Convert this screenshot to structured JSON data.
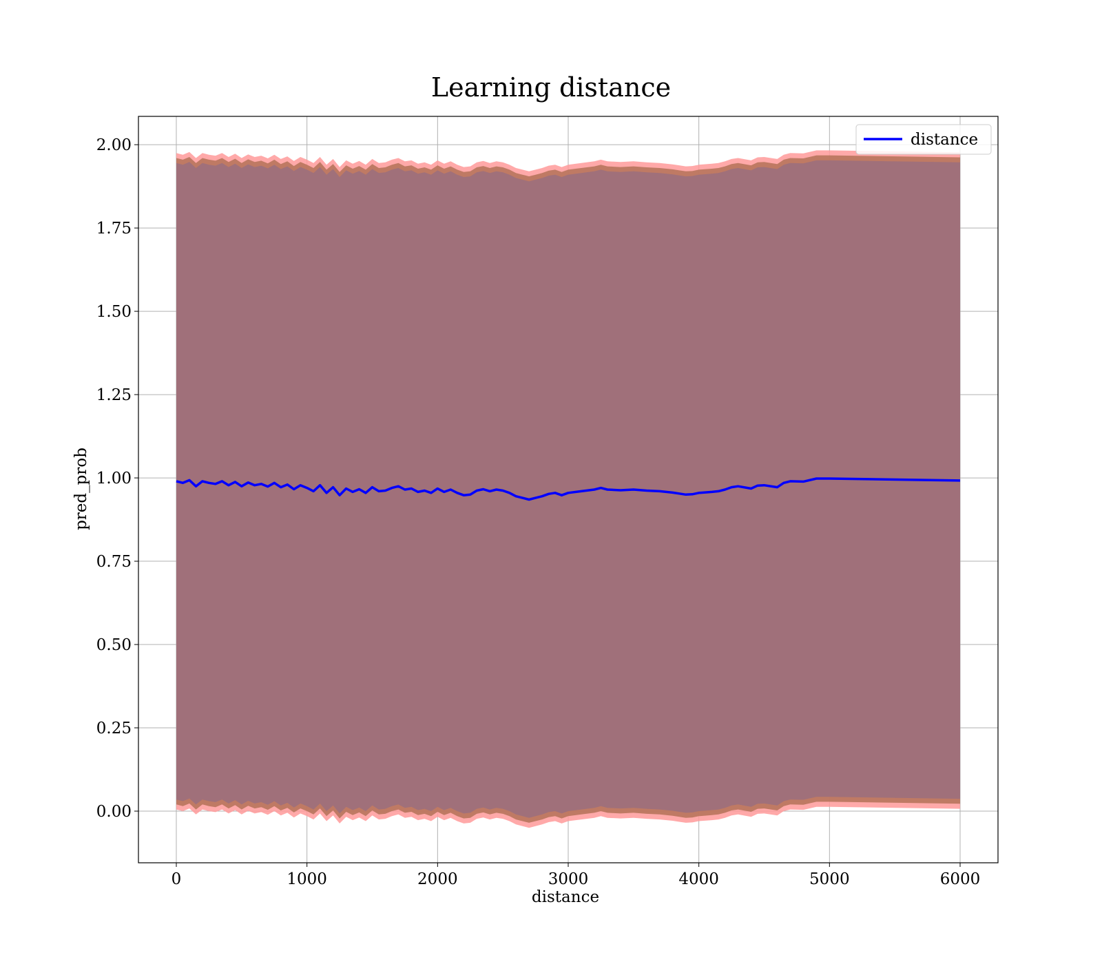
{
  "chart_data": {
    "type": "line",
    "title": "Learning distance",
    "xlabel": "distance",
    "ylabel": "pred_prob",
    "xlim": [
      -290,
      6290
    ],
    "ylim": [
      -0.155,
      2.085
    ],
    "xticks": [
      0,
      1000,
      2000,
      3000,
      4000,
      5000,
      6000
    ],
    "xtick_labels": [
      "0",
      "1000",
      "2000",
      "3000",
      "4000",
      "5000",
      "6000"
    ],
    "yticks": [
      0.0,
      0.25,
      0.5,
      0.75,
      1.0,
      1.25,
      1.5,
      1.75,
      2.0
    ],
    "ytick_labels": [
      "0.00",
      "0.25",
      "0.50",
      "0.75",
      "1.00",
      "1.25",
      "1.50",
      "1.75",
      "2.00"
    ],
    "grid": true,
    "legend_position": "top-right",
    "colors": {
      "line": "#0000ff",
      "outer_band": "#ff9a9a",
      "inner_band": "#b8745c",
      "core_band": "#a0707a",
      "axes": "#000000",
      "grid": "#b0b0b0"
    },
    "series": [
      {
        "name": "distance",
        "x": [
          0,
          50,
          100,
          150,
          200,
          250,
          300,
          350,
          400,
          450,
          500,
          550,
          600,
          650,
          700,
          750,
          800,
          850,
          900,
          950,
          1000,
          1050,
          1100,
          1150,
          1200,
          1250,
          1300,
          1350,
          1400,
          1450,
          1500,
          1550,
          1600,
          1650,
          1700,
          1750,
          1800,
          1850,
          1900,
          1950,
          2000,
          2050,
          2100,
          2150,
          2200,
          2250,
          2300,
          2350,
          2400,
          2450,
          2500,
          2550,
          2600,
          2650,
          2700,
          2750,
          2800,
          2850,
          2900,
          2950,
          3000,
          3100,
          3200,
          3250,
          3300,
          3400,
          3500,
          3600,
          3700,
          3800,
          3850,
          3900,
          3950,
          4000,
          4100,
          4150,
          4200,
          4250,
          4300,
          4400,
          4450,
          4500,
          4600,
          4650,
          4700,
          4800,
          4900,
          5000,
          6000
        ],
        "y": [
          0.99,
          0.985,
          0.993,
          0.975,
          0.99,
          0.985,
          0.982,
          0.99,
          0.978,
          0.988,
          0.975,
          0.986,
          0.978,
          0.982,
          0.974,
          0.985,
          0.972,
          0.98,
          0.966,
          0.978,
          0.97,
          0.96,
          0.978,
          0.955,
          0.972,
          0.948,
          0.968,
          0.958,
          0.966,
          0.955,
          0.972,
          0.96,
          0.962,
          0.97,
          0.975,
          0.965,
          0.968,
          0.958,
          0.962,
          0.955,
          0.968,
          0.958,
          0.965,
          0.955,
          0.948,
          0.95,
          0.962,
          0.966,
          0.96,
          0.965,
          0.962,
          0.955,
          0.945,
          0.94,
          0.935,
          0.94,
          0.945,
          0.952,
          0.955,
          0.948,
          0.955,
          0.96,
          0.965,
          0.97,
          0.965,
          0.963,
          0.965,
          0.962,
          0.96,
          0.956,
          0.953,
          0.95,
          0.951,
          0.955,
          0.958,
          0.96,
          0.965,
          0.972,
          0.975,
          0.968,
          0.977,
          0.978,
          0.972,
          0.985,
          0.99,
          0.989,
          0.998,
          0.998,
          0.992
        ],
        "band_outer_halfwidth": 0.985,
        "band_inner_halfwidth": 0.97,
        "band_core_halfwidth": 0.955
      }
    ]
  }
}
